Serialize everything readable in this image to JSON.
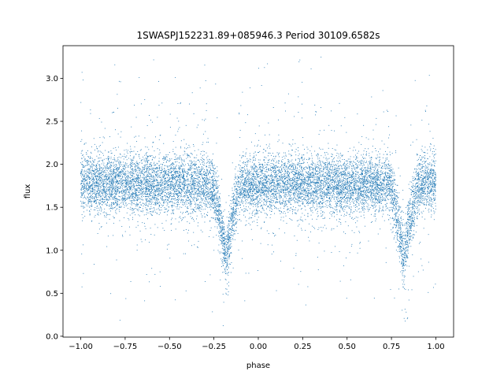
{
  "chart_data": {
    "type": "scatter",
    "title": "1SWASPJ152231.89+085946.3 Period 30109.6582s",
    "xlabel": "phase",
    "ylabel": "flux",
    "xlim": [
      -1.1,
      1.1
    ],
    "ylim": [
      -0.01,
      3.38
    ],
    "x_ticks": [
      -1.0,
      -0.75,
      -0.5,
      -0.25,
      0.0,
      0.25,
      0.5,
      0.75,
      1.0
    ],
    "x_tick_labels": [
      "−1.00",
      "−0.75",
      "−0.50",
      "−0.25",
      "0.00",
      "0.25",
      "0.50",
      "0.75",
      "1.00"
    ],
    "y_ticks": [
      0.0,
      0.5,
      1.0,
      1.5,
      2.0,
      2.5,
      3.0
    ],
    "y_tick_labels": [
      "0.0",
      "0.5",
      "1.0",
      "1.5",
      "2.0",
      "2.5",
      "3.0"
    ],
    "grid": false,
    "legend": "none",
    "marker_color": "#1f77b4",
    "light_curve": {
      "baseline_flux": 1.77,
      "baseline_scatter": 0.17,
      "eclipse_phases": [
        -0.18,
        0.82
      ],
      "eclipse_min_flux": 0.9,
      "eclipse_half_width": 0.085,
      "phase_range": [
        -1.0,
        1.0
      ],
      "n_points": 12000,
      "outlier_fraction": 0.08
    }
  }
}
